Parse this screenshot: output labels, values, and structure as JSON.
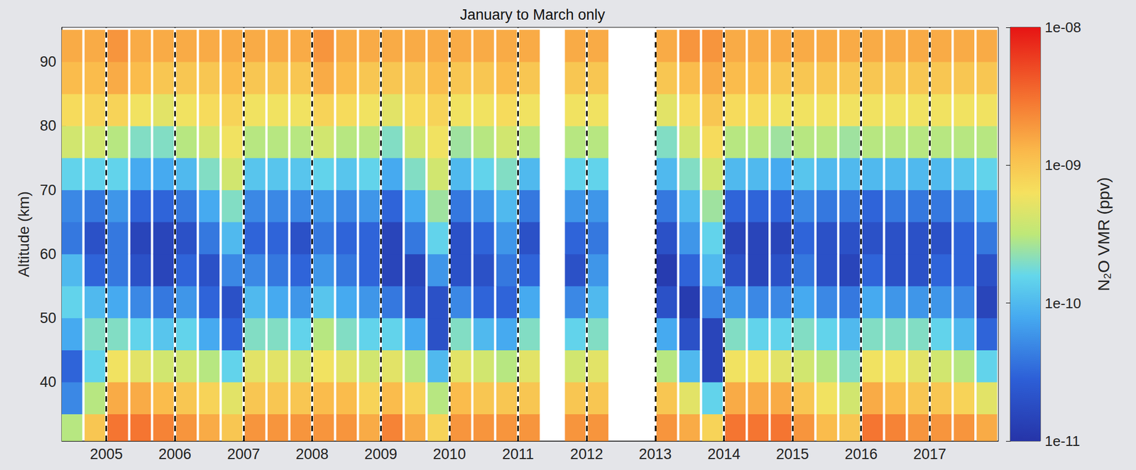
{
  "chart_data": {
    "type": "heatmap",
    "title": "January to March only",
    "ylabel": "Altitude (km)",
    "xlim": [
      2004.35,
      2018
    ],
    "xticks": [
      2005,
      2006,
      2007,
      2008,
      2009,
      2010,
      2011,
      2012,
      2013,
      2014,
      2015,
      2016,
      2017
    ],
    "ylim": [
      30.8,
      95.4
    ],
    "yticks": [
      40,
      50,
      60,
      70,
      80,
      90
    ],
    "grid": "x",
    "colorbar": {
      "label": "N₂O VMR (ppv)",
      "range": [
        1e-11,
        1e-08
      ],
      "log": true,
      "ticks": [
        {
          "value": 1e-11,
          "label": "1e-11"
        },
        {
          "value": 1e-10,
          "label": "1e-10"
        },
        {
          "value": 1e-09,
          "label": "1e-09"
        },
        {
          "value": 1e-08,
          "label": "1e-08"
        }
      ]
    },
    "y": [
      32.5,
      37.5,
      42.5,
      47.5,
      52.5,
      57.5,
      62.5,
      67.5,
      72.5,
      77.5,
      82.5,
      87.5,
      92.5
    ],
    "x": [
      2004.5,
      2004.833,
      2005.167,
      2005.5,
      2005.833,
      2006.167,
      2006.5,
      2006.833,
      2007.167,
      2007.5,
      2007.833,
      2008.167,
      2008.5,
      2008.833,
      2009.167,
      2009.5,
      2009.833,
      2010.167,
      2010.5,
      2010.833,
      2011.167,
      2011.833,
      2012.167,
      2013.167,
      2013.5,
      2013.833,
      2014.167,
      2014.5,
      2014.833,
      2015.167,
      2015.5,
      2015.833,
      2016.167,
      2016.5,
      2016.833,
      2017.167,
      2017.5,
      2017.833
    ],
    "values": [
      [
        3e-10,
        5e-11,
        3e-11,
        8e-11,
        1.5e-10,
        1e-10,
        4e-11,
        5e-11,
        1.5e-10,
        4e-10,
        7e-10,
        1.2e-09,
        1.5e-09
      ],
      [
        1e-09,
        3e-10,
        1.5e-10,
        2e-10,
        1e-10,
        3e-11,
        2e-11,
        4e-11,
        1.5e-10,
        4e-10,
        8e-10,
        1.2e-09,
        1.5e-09
      ],
      [
        3e-09,
        1.5e-09,
        6e-10,
        2e-10,
        8e-11,
        4e-11,
        4e-11,
        6e-11,
        1.5e-10,
        3e-10,
        8e-10,
        1.5e-09,
        2e-09
      ],
      [
        3e-09,
        1.5e-09,
        5e-10,
        1.5e-10,
        5e-11,
        2e-11,
        1.5e-11,
        3e-11,
        8e-11,
        2e-10,
        6e-10,
        1.2e-09,
        1.5e-09
      ],
      [
        2.5e-09,
        1.2e-09,
        4e-10,
        1.2e-10,
        4e-11,
        1.5e-11,
        1.5e-11,
        3e-11,
        8e-11,
        2e-10,
        5e-10,
        1e-09,
        1.5e-09
      ],
      [
        2e-09,
        1e-09,
        4e-10,
        1.5e-10,
        6e-11,
        3e-11,
        2e-11,
        4e-11,
        1e-10,
        3e-10,
        6e-10,
        1e-09,
        1.5e-09
      ],
      [
        1.5e-09,
        8e-10,
        3e-10,
        8e-11,
        3e-11,
        2e-11,
        4e-11,
        8e-11,
        2e-10,
        4e-10,
        7e-10,
        1e-09,
        1.5e-09
      ],
      [
        1e-09,
        5e-10,
        1.5e-10,
        3e-11,
        2e-11,
        5e-11,
        1e-10,
        2e-10,
        4e-10,
        6e-10,
        8e-10,
        1.2e-09,
        1.5e-09
      ],
      [
        2e-09,
        1e-09,
        5e-10,
        2e-10,
        1e-10,
        5e-11,
        3e-11,
        5e-11,
        1.2e-10,
        3e-10,
        6e-10,
        1e-09,
        1.5e-09
      ],
      [
        2e-09,
        1e-09,
        5e-10,
        2e-10,
        8e-11,
        4e-11,
        3e-11,
        5e-11,
        1.2e-10,
        3e-10,
        6e-10,
        1e-09,
        1.5e-09
      ],
      [
        2e-09,
        1e-09,
        4e-10,
        1.5e-10,
        6e-11,
        3e-11,
        2e-11,
        5e-11,
        1.2e-10,
        3e-10,
        6e-10,
        1e-09,
        1.5e-09
      ],
      [
        2e-09,
        1.2e-09,
        6e-10,
        3e-10,
        1.2e-10,
        6e-11,
        4e-11,
        6e-11,
        1.5e-10,
        4e-10,
        8e-10,
        1.5e-09,
        2e-09
      ],
      [
        2e-09,
        1.2e-09,
        5e-10,
        2e-10,
        8e-11,
        4e-11,
        3e-11,
        5e-11,
        1.2e-10,
        3e-10,
        7e-10,
        1.2e-09,
        1.5e-09
      ],
      [
        1.5e-09,
        8e-10,
        4e-10,
        1.5e-10,
        6e-11,
        3e-11,
        3e-11,
        6e-11,
        1.5e-10,
        3e-10,
        6e-10,
        1e-09,
        1.5e-09
      ],
      [
        2.5e-09,
        1.2e-09,
        5e-10,
        1.5e-10,
        4e-11,
        1.5e-11,
        1.5e-11,
        3e-11,
        8e-11,
        2e-10,
        5e-10,
        1e-09,
        1.5e-09
      ],
      [
        1.5e-09,
        8e-10,
        3e-10,
        8e-11,
        2e-11,
        1.5e-11,
        4e-11,
        8e-11,
        2e-10,
        4e-10,
        7e-10,
        1e-09,
        1.5e-09
      ],
      [
        8e-10,
        3e-10,
        1e-10,
        2e-11,
        2e-11,
        6e-11,
        1.5e-10,
        2.5e-10,
        4e-10,
        6e-10,
        8e-10,
        1.2e-09,
        1.5e-09
      ],
      [
        2e-09,
        1.2e-09,
        5e-10,
        2e-10,
        5e-11,
        2e-11,
        2e-11,
        4e-11,
        1e-10,
        2.5e-10,
        6e-10,
        1e-09,
        1.5e-09
      ],
      [
        2e-09,
        1e-09,
        4e-10,
        1e-10,
        3e-11,
        2e-11,
        3e-11,
        6e-11,
        1.5e-10,
        3e-10,
        6e-10,
        1e-09,
        1.5e-09
      ],
      [
        2e-09,
        1e-09,
        3e-10,
        8e-11,
        3e-11,
        4e-11,
        6e-11,
        1e-10,
        2e-10,
        4e-10,
        7e-10,
        1.2e-09,
        1.5e-09
      ],
      [
        2e-09,
        1e-09,
        5e-10,
        2e-10,
        8e-11,
        3e-11,
        2e-11,
        4e-11,
        1e-10,
        3e-10,
        6e-10,
        1e-09,
        1.5e-09
      ],
      [
        2e-09,
        1e-09,
        4e-10,
        1.5e-10,
        5e-11,
        2e-11,
        3e-11,
        6e-11,
        1.5e-10,
        3e-10,
        6e-10,
        1e-09,
        1.5e-09
      ],
      [
        2e-09,
        1e-09,
        5e-10,
        2e-10,
        1e-10,
        6e-11,
        4e-11,
        6e-11,
        1.5e-10,
        3e-10,
        6e-10,
        1e-09,
        1.5e-09
      ],
      [
        2e-09,
        1e-09,
        3e-10,
        8e-11,
        2e-11,
        1.2e-11,
        2e-11,
        4e-11,
        1e-10,
        2e-10,
        5e-10,
        1e-09,
        1.5e-09
      ],
      [
        1.5e-09,
        5e-10,
        1e-10,
        2e-11,
        1.2e-11,
        3e-11,
        6e-11,
        1e-10,
        2e-10,
        4e-10,
        7e-10,
        1.2e-09,
        2e-09
      ],
      [
        8e-10,
        1.5e-10,
        1.5e-11,
        1.5e-11,
        5e-11,
        1e-10,
        1.5e-10,
        2.5e-10,
        4e-10,
        7e-10,
        1e-09,
        1.5e-09,
        2e-09
      ],
      [
        3e-09,
        1.5e-09,
        6e-10,
        2e-10,
        6e-11,
        2e-11,
        1.5e-11,
        3e-11,
        1e-10,
        3e-10,
        7e-10,
        1.2e-09,
        1.5e-09
      ],
      [
        3e-09,
        1.5e-09,
        6e-10,
        1.5e-10,
        5e-11,
        1.5e-11,
        1.5e-11,
        3e-11,
        1e-10,
        3e-10,
        7e-10,
        1.2e-09,
        1.5e-09
      ],
      [
        3e-09,
        1.5e-09,
        5e-10,
        1.5e-10,
        5e-11,
        2e-11,
        1.5e-11,
        3e-11,
        8e-11,
        2.5e-10,
        6e-10,
        1e-09,
        1.5e-09
      ],
      [
        2e-09,
        1e-09,
        4e-10,
        2e-10,
        8e-11,
        4e-11,
        3e-11,
        5e-11,
        1.2e-10,
        3e-10,
        6e-10,
        1e-09,
        1.5e-09
      ],
      [
        1.2e-09,
        6e-10,
        3e-10,
        1.5e-10,
        5e-11,
        2e-11,
        2e-11,
        4e-11,
        1e-10,
        3e-10,
        6e-10,
        1e-09,
        1.5e-09
      ],
      [
        1e-09,
        4e-10,
        2e-10,
        1e-10,
        4e-11,
        1.5e-11,
        2e-11,
        4e-11,
        1e-10,
        2.5e-10,
        6e-10,
        1e-09,
        1.5e-09
      ],
      [
        3e-09,
        1.5e-09,
        6e-10,
        2e-10,
        8e-11,
        3e-11,
        2e-11,
        3e-11,
        1e-10,
        3e-10,
        6e-10,
        1e-09,
        1.5e-09
      ],
      [
        2.5e-09,
        1.2e-09,
        6e-10,
        2e-10,
        6e-11,
        2e-11,
        2e-11,
        4e-11,
        1e-10,
        3e-10,
        6e-10,
        1e-09,
        1.5e-09
      ],
      [
        2e-09,
        1e-09,
        5e-10,
        2e-10,
        6e-11,
        2e-11,
        2e-11,
        4e-11,
        1e-10,
        3e-10,
        6e-10,
        1e-09,
        1.5e-09
      ],
      [
        2e-09,
        1e-09,
        4e-10,
        1.5e-10,
        6e-11,
        3e-11,
        2e-11,
        4e-11,
        1e-10,
        3e-10,
        6e-10,
        1e-09,
        1.5e-09
      ],
      [
        2e-09,
        8e-10,
        3e-10,
        1e-10,
        5e-11,
        3e-11,
        3e-11,
        5e-11,
        1.2e-10,
        3e-10,
        6e-10,
        1e-09,
        1.5e-09
      ],
      [
        1.5e-09,
        5e-10,
        1.5e-10,
        3e-11,
        1.5e-11,
        2e-11,
        4e-11,
        8e-11,
        1.5e-10,
        3e-10,
        6e-10,
        1e-09,
        1.5e-09
      ]
    ]
  }
}
